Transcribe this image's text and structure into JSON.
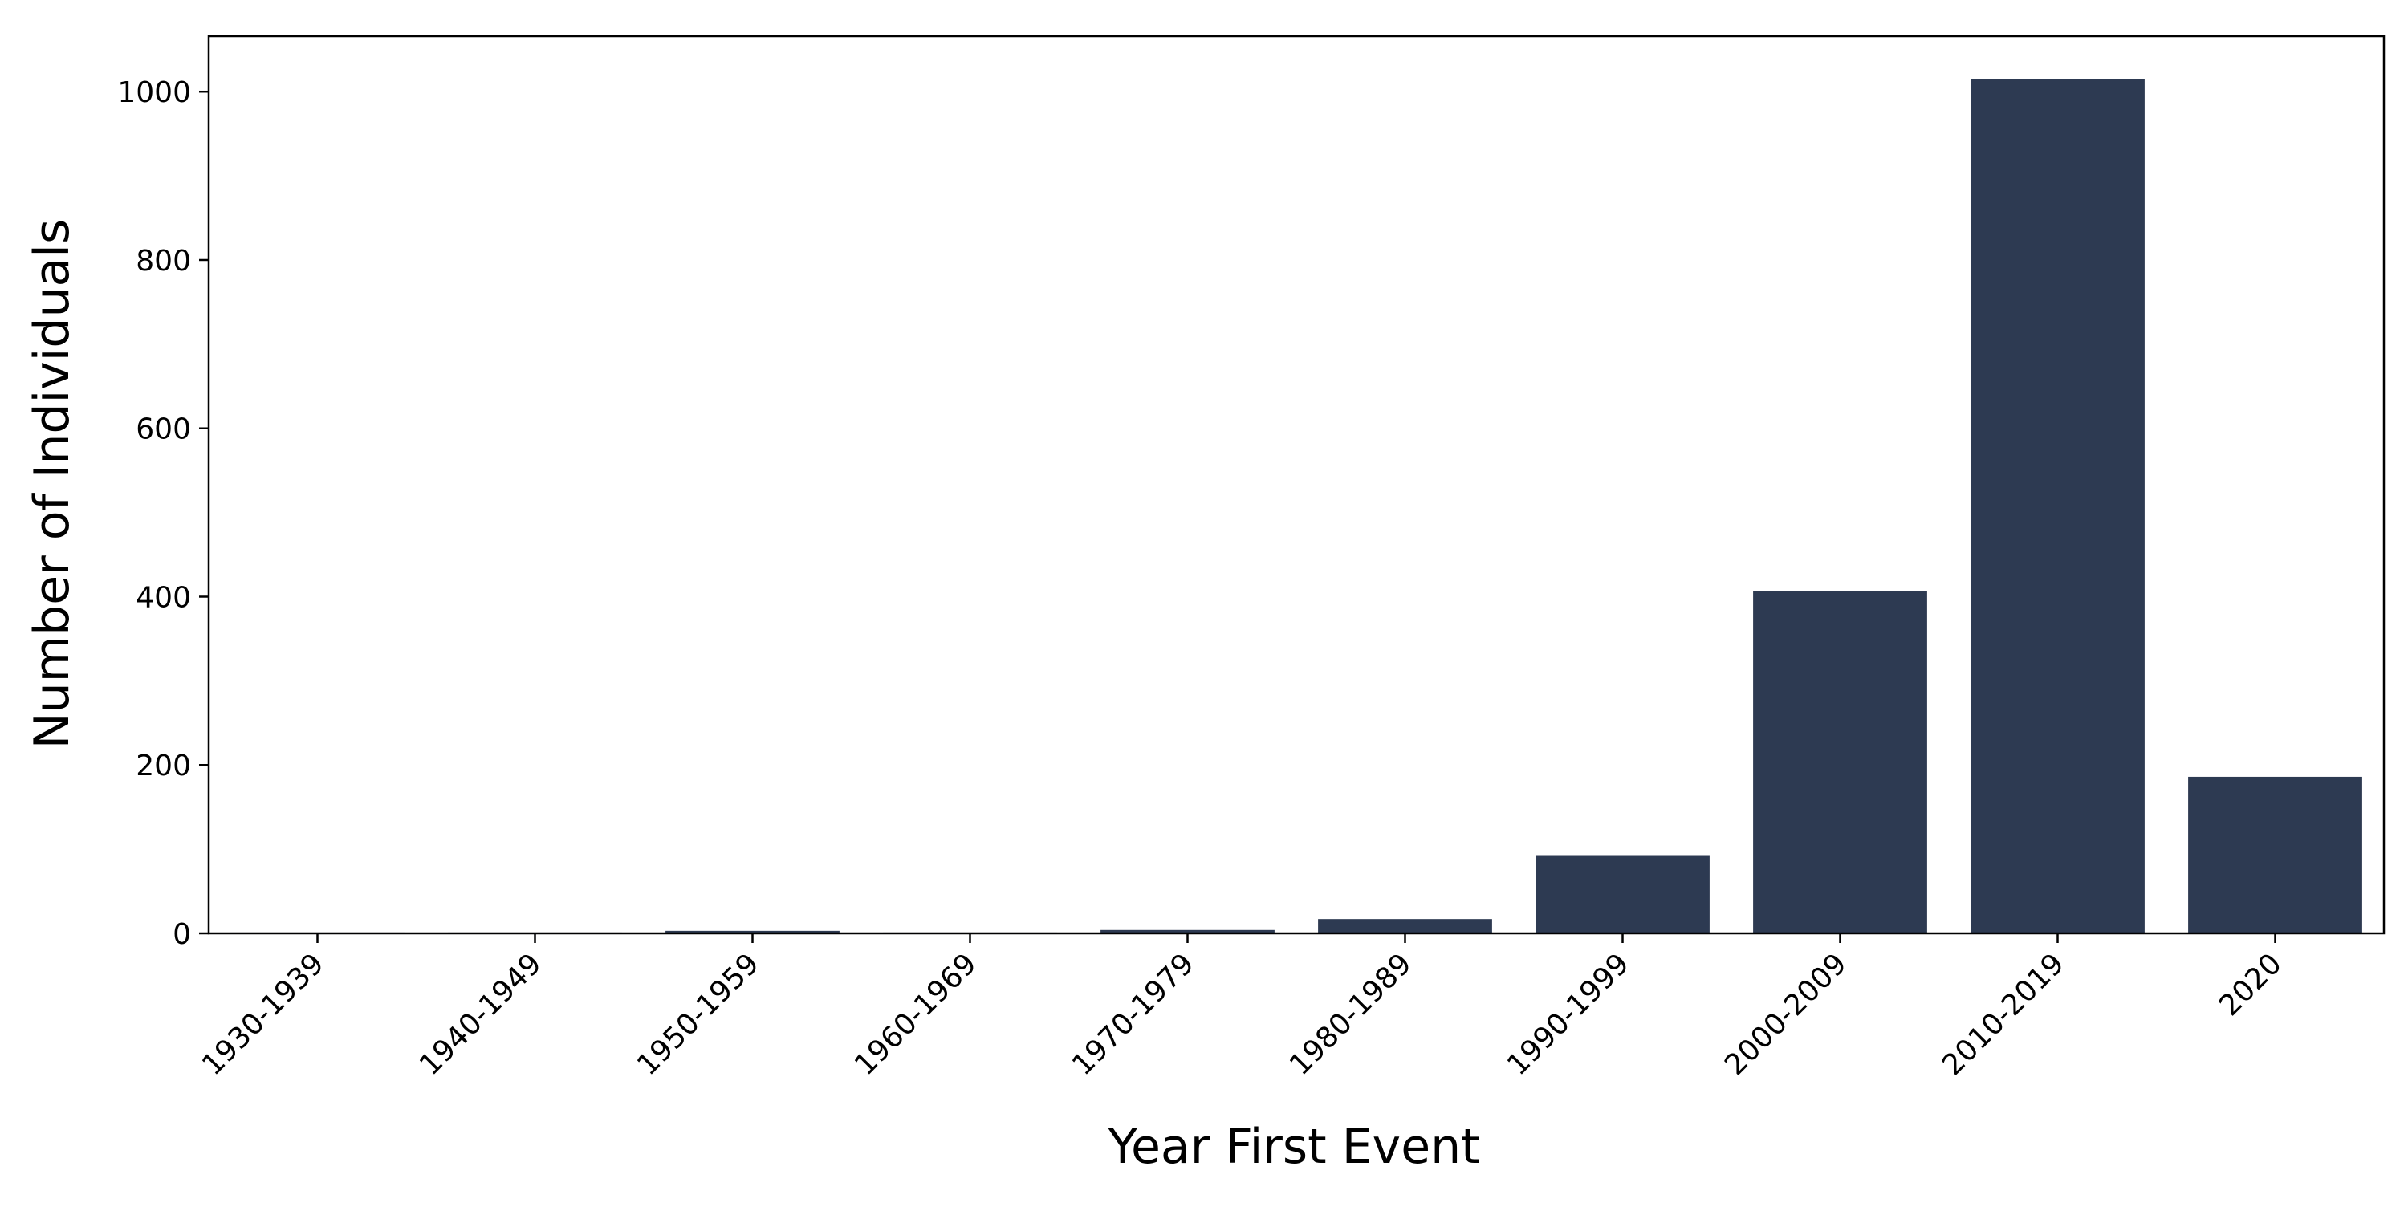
{
  "chart_data": {
    "type": "bar",
    "xlabel": "Year First Event",
    "ylabel": "Number of Individuals",
    "categories": [
      "1930-1939",
      "1940-1949",
      "1950-1959",
      "1960-1969",
      "1970-1979",
      "1980-1989",
      "1990-1999",
      "2000-2009",
      "2010-2019",
      "2020"
    ],
    "values": [
      1,
      1,
      3,
      1,
      4,
      17,
      92,
      407,
      1015,
      186
    ],
    "ylim": [
      0,
      1066
    ],
    "yticks": [
      0,
      200,
      400,
      600,
      800,
      1000
    ],
    "grid": false,
    "legend": "none",
    "bar_color": "#2d3a52"
  }
}
